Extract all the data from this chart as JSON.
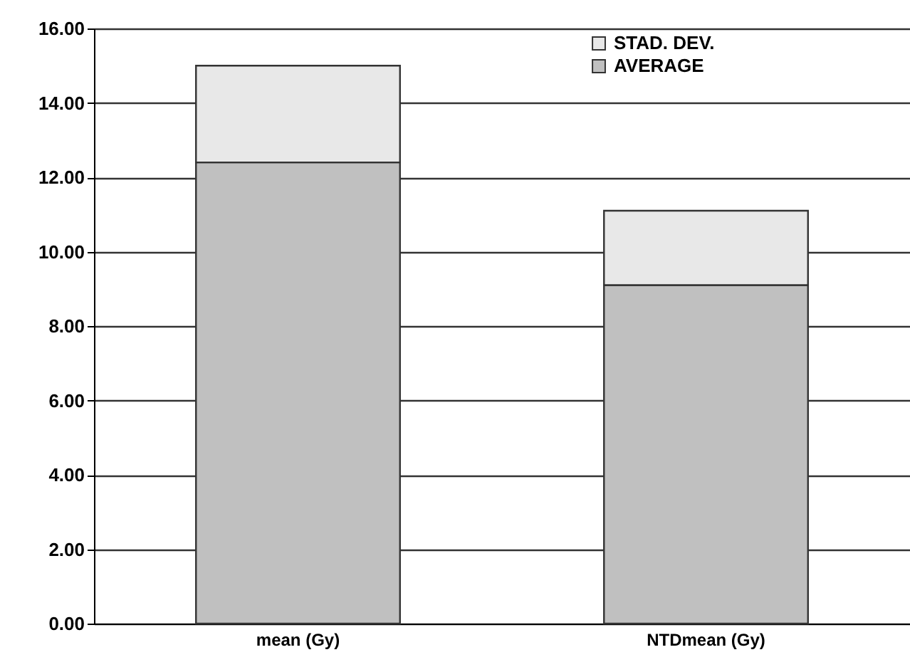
{
  "chart_data": {
    "type": "bar",
    "stacked": true,
    "categories": [
      "mean (Gy)",
      "NTDmean (Gy)"
    ],
    "series": [
      {
        "name": "AVERAGE",
        "color": "#c0c0c0",
        "values": [
          12.4,
          9.1
        ]
      },
      {
        "name": "STAD. DEV.",
        "color": "#e8e8e8",
        "values": [
          2.6,
          2.0
        ]
      }
    ],
    "ylim": [
      0,
      16
    ],
    "yticks": [
      {
        "value": 0,
        "label": "0.00"
      },
      {
        "value": 2,
        "label": "2.00"
      },
      {
        "value": 4,
        "label": "4.00"
      },
      {
        "value": 6,
        "label": "6.00"
      },
      {
        "value": 8,
        "label": "8.00"
      },
      {
        "value": 10,
        "label": "10.00"
      },
      {
        "value": 12,
        "label": "12.00"
      },
      {
        "value": 14,
        "label": "14.00"
      },
      {
        "value": 16,
        "label": "16.00"
      }
    ],
    "grid": "y",
    "legend": "top right"
  }
}
